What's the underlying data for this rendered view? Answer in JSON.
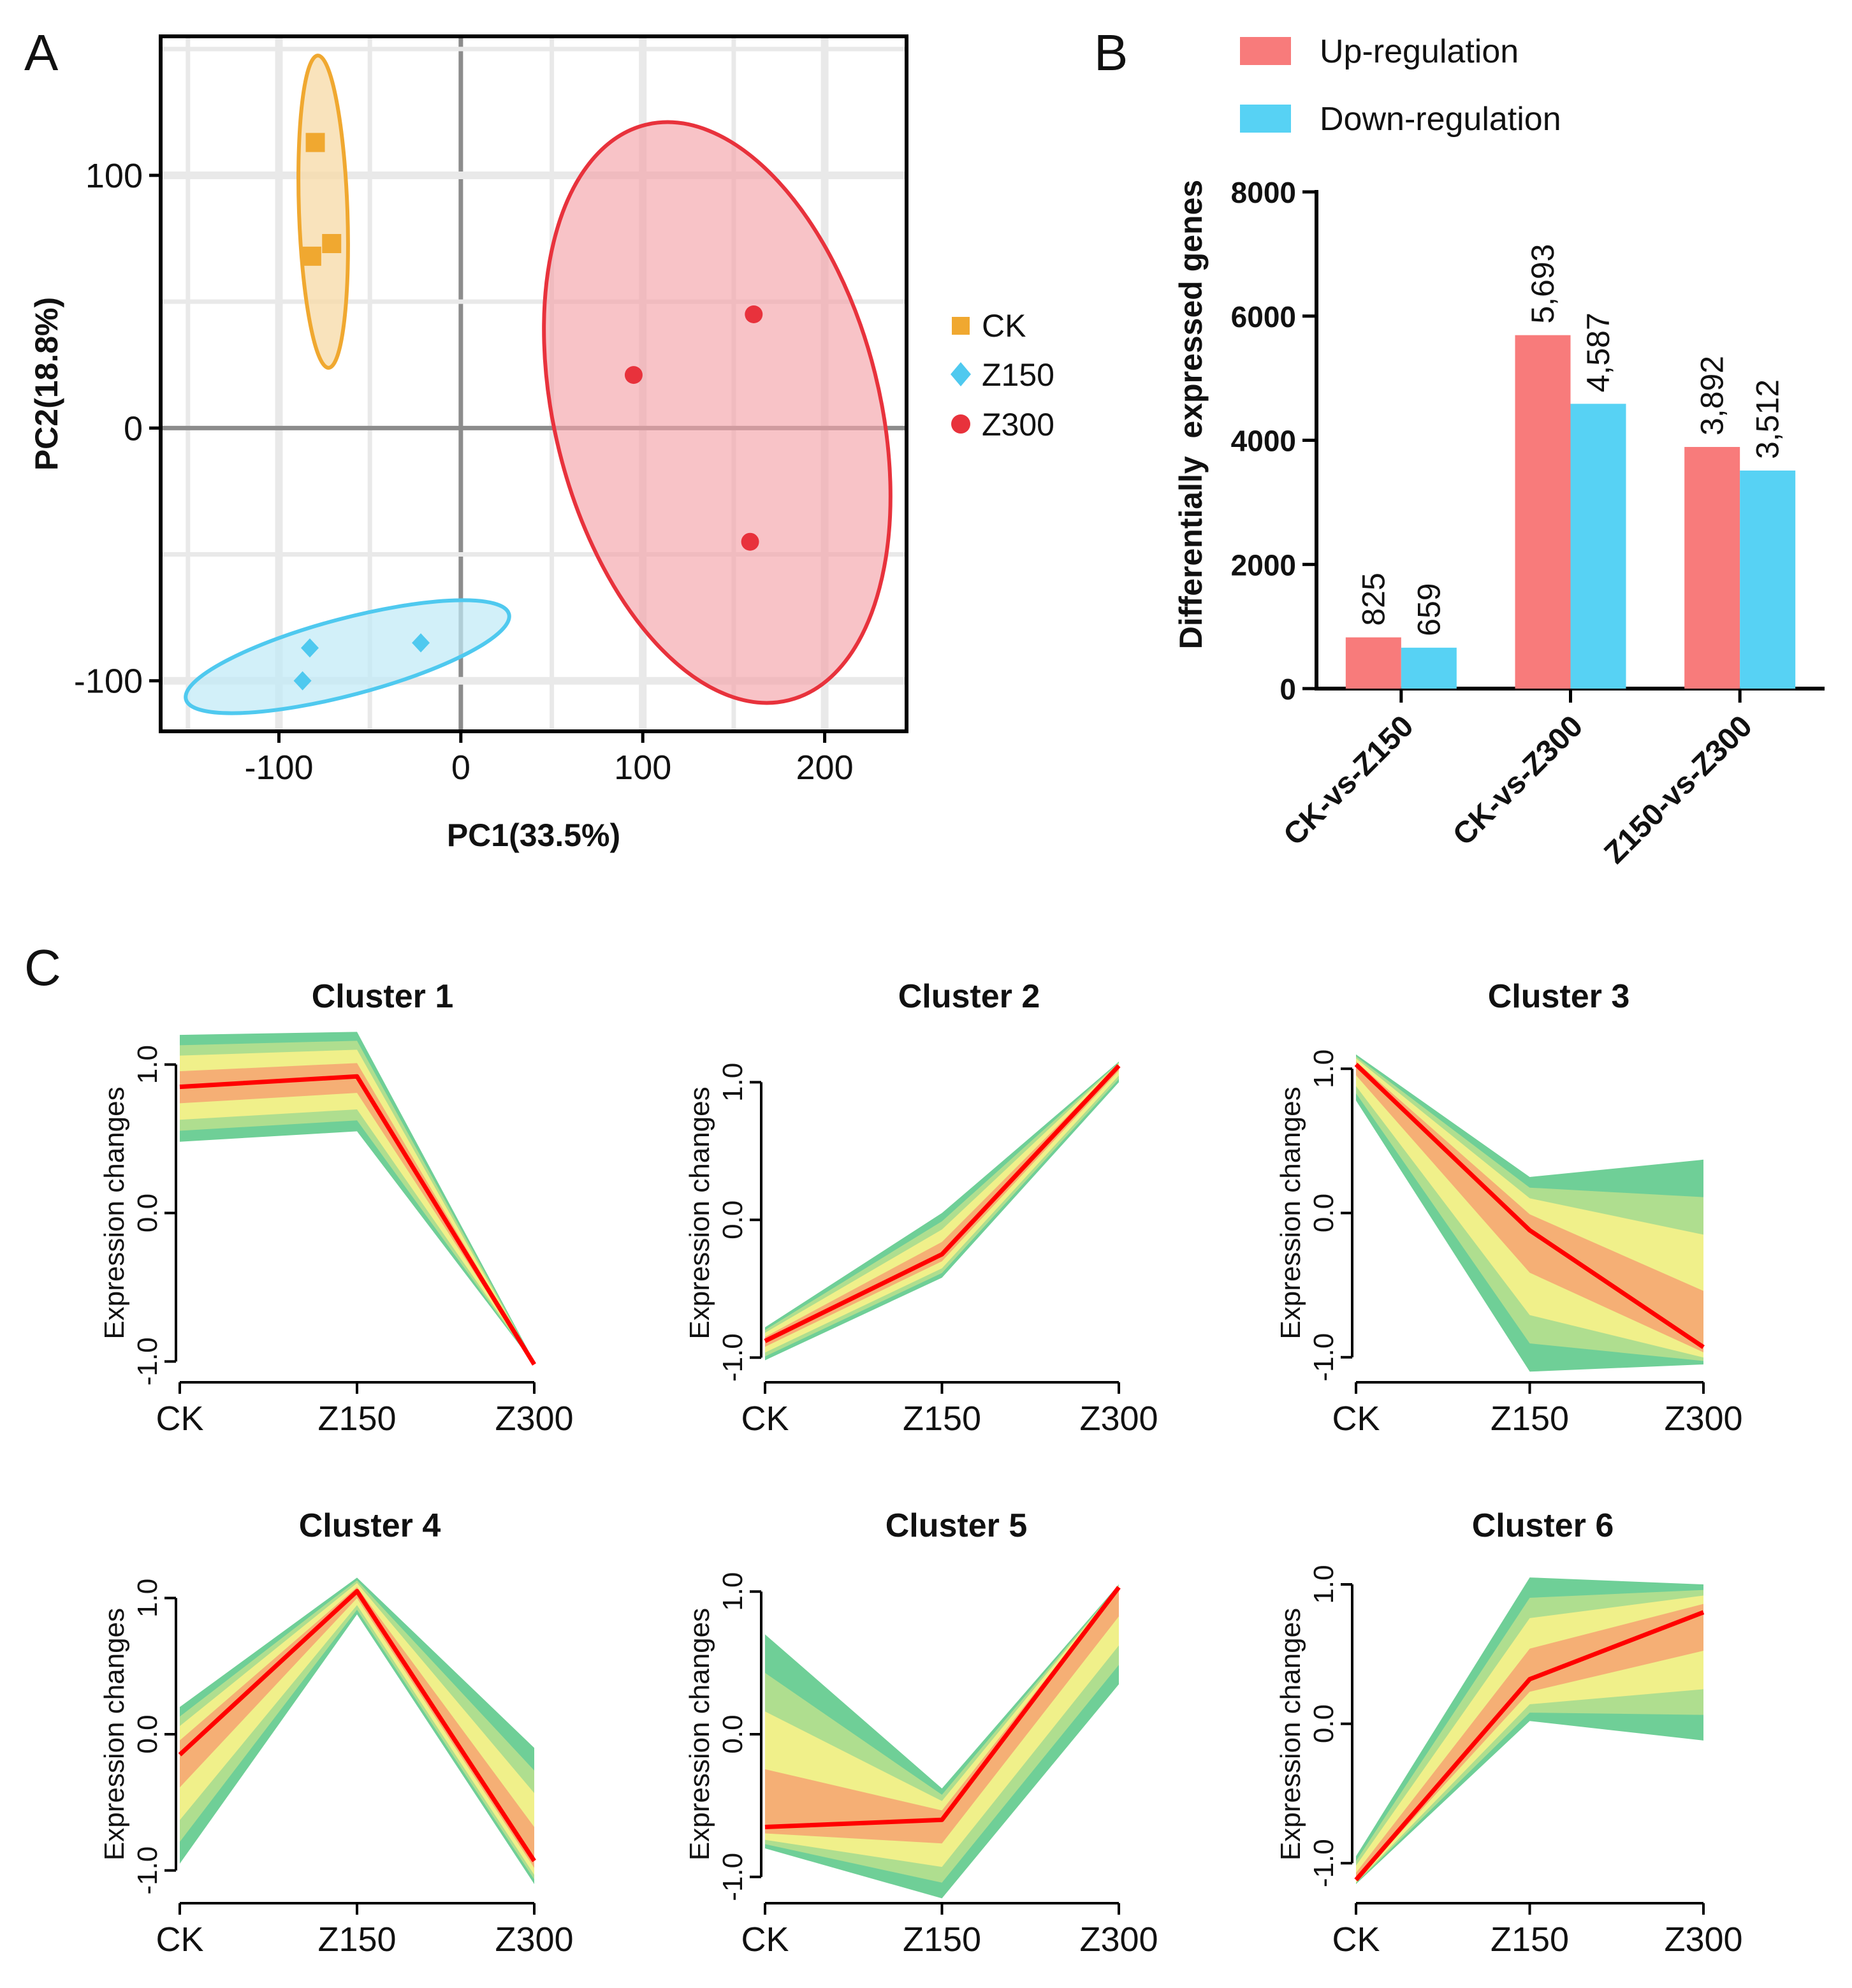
{
  "panel_labels": {
    "a": "A",
    "b": "B",
    "c": "C"
  },
  "colors": {
    "ck": "#f0a830",
    "z150": "#4fc9ef",
    "z300": "#e8323c",
    "up": "#f87b7b",
    "down": "#57d2f4",
    "band_outer": "#6fcf97",
    "band_mid": "#f3f08a",
    "band_inner": "#f79a6e",
    "centroid": "#ff0000"
  },
  "chart_data": [
    {
      "type": "scatter",
      "panel": "A",
      "xlabel": "PC1(33.5%)",
      "ylabel": "PC2(18.8%)",
      "xlim": [
        -165,
        245
      ],
      "ylim": [
        -120,
        155
      ],
      "xticks": [
        -100,
        0,
        100,
        200
      ],
      "yticks": [
        -100,
        0,
        100
      ],
      "xtick_labels": [
        "-100",
        "0",
        "100",
        "200"
      ],
      "ytick_labels": [
        "-100",
        "0",
        "100"
      ],
      "grid": true,
      "legend_position": "right",
      "series": [
        {
          "name": "CK",
          "marker": "square",
          "points": [
            [
              -80,
              113
            ],
            [
              -82,
              68
            ],
            [
              -71,
              73
            ]
          ]
        },
        {
          "name": "Z150",
          "marker": "diamond",
          "points": [
            [
              -83,
              -87
            ],
            [
              -22,
              -85
            ],
            [
              -87,
              -100
            ]
          ]
        },
        {
          "name": "Z300",
          "marker": "circle",
          "points": [
            [
              161,
              45
            ],
            [
              95,
              21
            ],
            [
              159,
              -45
            ]
          ]
        }
      ]
    },
    {
      "type": "bar",
      "panel": "B",
      "ylabel": "Differentially  expressed genes",
      "ylim": [
        0,
        8000
      ],
      "yticks": [
        0,
        2000,
        4000,
        6000,
        8000
      ],
      "ytick_labels": [
        "0",
        "2000",
        "4000",
        "6000",
        "8000"
      ],
      "categories": [
        "CK-vs-Z150",
        "CK-vs-Z300",
        "Z150-vs-Z300"
      ],
      "legend_position": "top",
      "series": [
        {
          "name": "Up-regulation",
          "values": [
            825,
            5693,
            3892
          ],
          "labels": [
            "825",
            "5,693",
            "3,892"
          ]
        },
        {
          "name": "Down-regulation",
          "values": [
            659,
            4587,
            3512
          ],
          "labels": [
            "659",
            "4,587",
            "3,512"
          ]
        }
      ]
    },
    {
      "type": "line",
      "panel": "C",
      "ylabel": "Expression changes",
      "categories": [
        "CK",
        "Z150",
        "Z300"
      ],
      "yticks": [
        -1,
        0,
        1
      ],
      "ytick_labels": [
        "-1.0",
        "0.0",
        "1.0"
      ],
      "clusters": [
        {
          "title": "Cluster 1",
          "ylim": [
            -1.02,
            1.02
          ],
          "center": [
            0.85,
            0.92,
            -1.02
          ],
          "band_low": [
            0.48,
            0.55,
            -1.02
          ],
          "band_high": [
            1.2,
            1.22,
            -1.0
          ]
        },
        {
          "title": "Cluster 2",
          "ylim": [
            -1.05,
            1.15
          ],
          "center": [
            -0.88,
            -0.25,
            1.12
          ],
          "band_low": [
            -1.02,
            -0.42,
            1.0
          ],
          "band_high": [
            -0.78,
            0.05,
            1.15
          ]
        },
        {
          "title": "Cluster 3",
          "ylim": [
            -1.05,
            1.05
          ],
          "center": [
            1.03,
            -0.12,
            -0.93
          ],
          "band_low": [
            0.78,
            -1.1,
            -1.05
          ],
          "band_high": [
            1.1,
            0.25,
            0.37
          ]
        },
        {
          "title": "Cluster 4",
          "ylim": [
            -1.1,
            1.1
          ],
          "center": [
            -0.15,
            1.05,
            -0.93
          ],
          "band_low": [
            -0.95,
            0.88,
            -1.1
          ],
          "band_high": [
            0.2,
            1.15,
            -0.1
          ]
        },
        {
          "title": "Cluster 5",
          "ylim": [
            -1.05,
            1.05
          ],
          "center": [
            -0.65,
            -0.6,
            1.03
          ],
          "band_low": [
            -0.8,
            -1.15,
            0.35
          ],
          "band_high": [
            0.7,
            -0.38,
            1.05
          ]
        },
        {
          "title": "Cluster 6",
          "ylim": [
            -1.15,
            1.0
          ],
          "center": [
            -1.12,
            0.32,
            0.8
          ],
          "band_low": [
            -1.15,
            0.02,
            -0.12
          ],
          "band_high": [
            -0.95,
            1.05,
            1.0
          ]
        }
      ]
    }
  ]
}
